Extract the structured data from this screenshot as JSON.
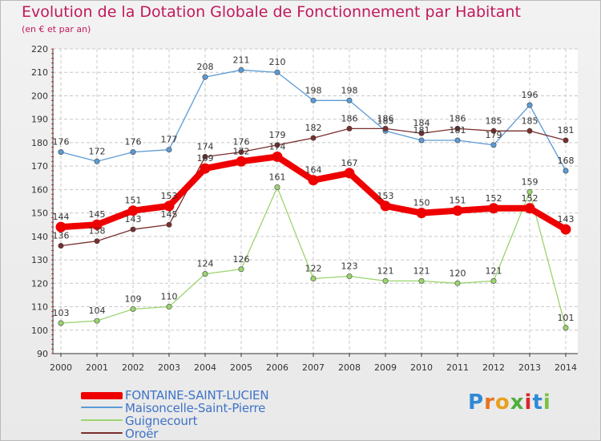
{
  "header": {
    "title": "Evolution de la Dotation Globale de Fonctionnement par Habitant",
    "subtitle": "(en € et par an)"
  },
  "logo": {
    "text": "Proxiti",
    "letter_colors": [
      "#2f8ad6",
      "#e8731e",
      "#e8a01e",
      "#4fae3a",
      "#d9262d",
      "#2f8ad6",
      "#7cc242"
    ]
  },
  "chart_data": {
    "type": "line",
    "x": [
      "2000",
      "2001",
      "2002",
      "2003",
      "2004",
      "2005",
      "2006",
      "2007",
      "2008",
      "2009",
      "2010",
      "2011",
      "2012",
      "2013",
      "2014"
    ],
    "ylim": [
      90,
      220
    ],
    "yticks": [
      "90",
      "100",
      "110",
      "120",
      "130",
      "140",
      "150",
      "160",
      "170",
      "180",
      "190",
      "200",
      "210",
      "220"
    ],
    "grid": true,
    "legend_position": "bottom-left",
    "series": [
      {
        "name": "FONTAINE-SAINT-LUCIEN",
        "color": "#ee0000",
        "values": [
          144,
          145,
          151,
          153,
          169,
          172,
          174,
          164,
          167,
          153,
          150,
          151,
          152,
          152,
          143
        ],
        "labels": [
          "144",
          "145",
          "151",
          "153",
          "169",
          "172",
          "174",
          "164",
          "167",
          "153",
          "150",
          "151",
          "152",
          "152",
          "143"
        ]
      },
      {
        "name": "Maisoncelle-Saint-Pierre",
        "color": "#5b9bd5",
        "values": [
          176,
          172,
          176,
          177,
          208,
          211,
          210,
          198,
          198,
          185,
          181,
          181,
          179,
          196,
          168
        ],
        "labels": [
          "176",
          "172",
          "176",
          "177",
          "208",
          "211",
          "210",
          "198",
          "198",
          "185",
          "181",
          "181",
          "179",
          "196",
          "168"
        ]
      },
      {
        "name": "Guignecourt",
        "color": "#9bd46e",
        "values": [
          103,
          104,
          109,
          110,
          124,
          126,
          161,
          122,
          123,
          121,
          121,
          120,
          121,
          159,
          101
        ],
        "labels": [
          "103",
          "104",
          "109",
          "110",
          "124",
          "126",
          "161",
          "122",
          "123",
          "121",
          "121",
          "120",
          "121",
          "159",
          "101"
        ]
      },
      {
        "name": "Oroër",
        "color": "#7a2e2e",
        "values": [
          136,
          138,
          143,
          145,
          174,
          176,
          179,
          182,
          186,
          186,
          184,
          186,
          185,
          185,
          181
        ],
        "labels": [
          "136",
          "138",
          "143",
          "145",
          "174",
          "176",
          "179",
          "182",
          "186",
          "186",
          "184",
          "186",
          "185",
          "185",
          "181"
        ]
      }
    ]
  }
}
